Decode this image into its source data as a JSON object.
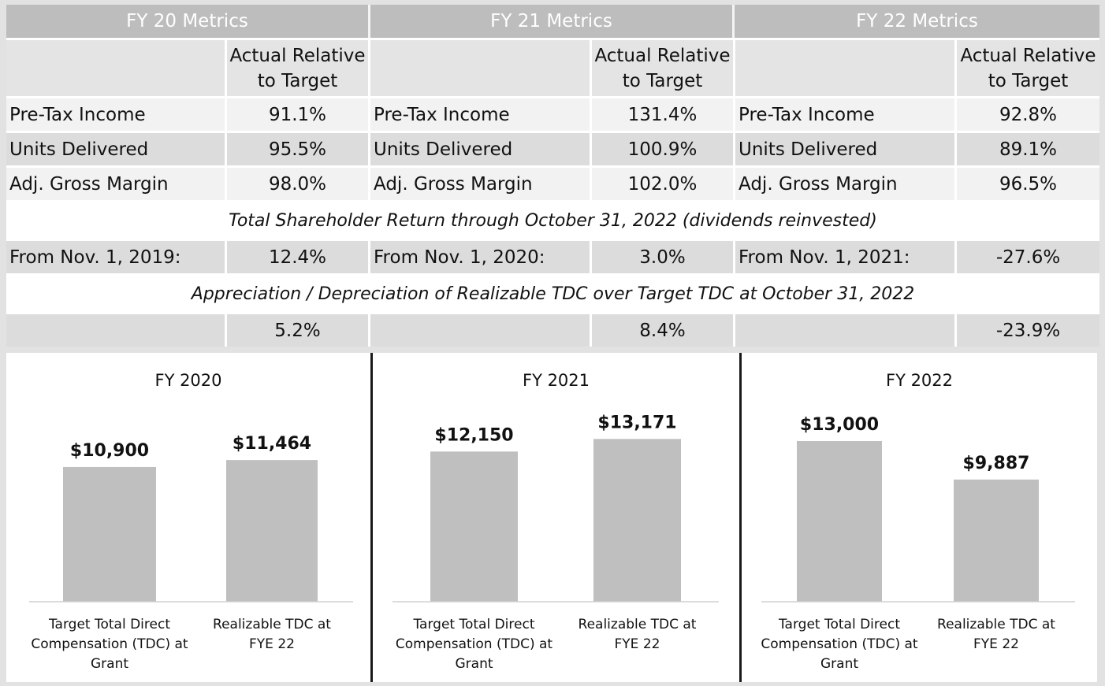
{
  "metrics_table": {
    "years": [
      {
        "header": "FY 20 Metrics",
        "col_header_line1": "Actual Relative",
        "col_header_line2": "to Target",
        "pre_tax_income": "91.1%",
        "units_delivered": "95.5%",
        "adj_gross_margin": "98.0%",
        "tsr_label": "From Nov. 1, 2019:",
        "tsr_value": "12.4%",
        "realizable_vs_target": "5.2%"
      },
      {
        "header": "FY 21 Metrics",
        "col_header_line1": "Actual Relative",
        "col_header_line2": "to Target",
        "pre_tax_income": "131.4%",
        "units_delivered": "100.9%",
        "adj_gross_margin": "102.0%",
        "tsr_label": "From Nov. 1, 2020:",
        "tsr_value": "3.0%",
        "realizable_vs_target": "8.4%"
      },
      {
        "header": "FY 22 Metrics",
        "col_header_line1": "Actual Relative",
        "col_header_line2": "to Target",
        "pre_tax_income": "92.8%",
        "units_delivered": "89.1%",
        "adj_gross_margin": "96.5%",
        "tsr_label": "From Nov. 1, 2021:",
        "tsr_value": "-27.6%",
        "realizable_vs_target": "-23.9%"
      }
    ],
    "row_labels": {
      "pre_tax_income": "Pre-Tax Income",
      "units_delivered": "Units Delivered",
      "adj_gross_margin": "Adj. Gross Margin"
    },
    "tsr_banner": "Total Shareholder Return through October 31, 2022 (dividends reinvested)",
    "tdc_banner": "Appreciation / Depreciation of Realizable TDC over Target TDC at October 31, 2022"
  },
  "chart_data": [
    {
      "type": "bar",
      "title": "FY 2020",
      "categories": [
        "Target Total Direct Compensation (TDC) at Grant",
        "Realizable TDC at FYE 22"
      ],
      "category_lines": [
        [
          "Target Total Direct",
          "Compensation (TDC) at",
          "Grant"
        ],
        [
          "Realizable TDC at",
          "FYE 22"
        ]
      ],
      "values": [
        10900,
        11464
      ],
      "value_labels": [
        "$10,900",
        "$11,464"
      ],
      "bar_color": "#bfbfbf",
      "grid": false,
      "legend": "none"
    },
    {
      "type": "bar",
      "title": "FY 2021",
      "categories": [
        "Target Total Direct Compensation (TDC) at Grant",
        "Realizable TDC at FYE 22"
      ],
      "category_lines": [
        [
          "Target Total Direct",
          "Compensation (TDC) at",
          "Grant"
        ],
        [
          "Realizable TDC at",
          "FYE 22"
        ]
      ],
      "values": [
        12150,
        13171
      ],
      "value_labels": [
        "$12,150",
        "$13,171"
      ],
      "bar_color": "#bfbfbf",
      "grid": false,
      "legend": "none"
    },
    {
      "type": "bar",
      "title": "FY 2022",
      "categories": [
        "Target Total Direct Compensation (TDC) at Grant",
        "Realizable TDC at FYE 22"
      ],
      "category_lines": [
        [
          "Target Total Direct",
          "Compensation (TDC) at",
          "Grant"
        ],
        [
          "Realizable TDC at",
          "FYE 22"
        ]
      ],
      "values": [
        13000,
        9887
      ],
      "value_labels": [
        "$13,000",
        "$9,887"
      ],
      "bar_color": "#bfbfbf",
      "grid": false,
      "legend": "none"
    }
  ]
}
